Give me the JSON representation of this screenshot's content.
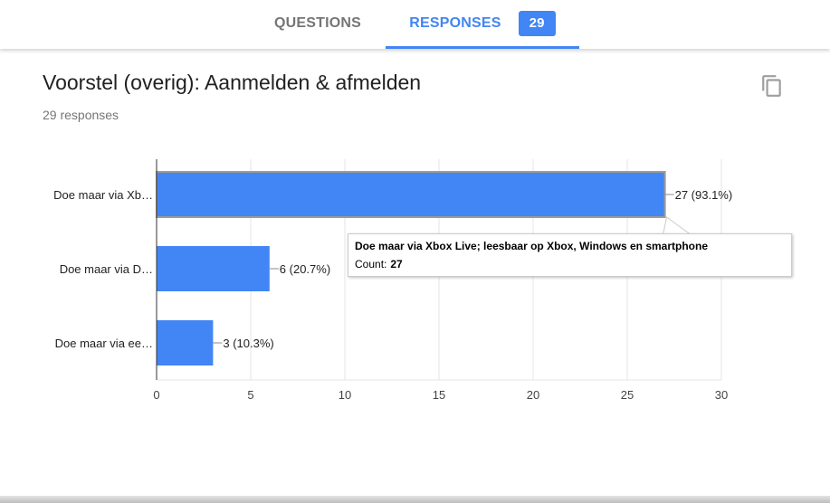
{
  "tabs": {
    "questions_label": "QUESTIONS",
    "responses_label": "RESPONSES",
    "responses_count": "29"
  },
  "card": {
    "title": "Voorstel (overig): Aanmelden & afmelden",
    "subtitle": "29 responses",
    "copy_icon": "copy-icon"
  },
  "tooltip": {
    "title": "Doe maar via Xbox Live; leesbaar op Xbox, Windows en smartphone",
    "count_label": "Count:",
    "count_value": "27"
  },
  "colors": {
    "accent": "#4285f4",
    "bar": "#4285f4"
  },
  "chart_data": {
    "type": "bar",
    "orientation": "horizontal",
    "categories": [
      "Doe maar via Xb…",
      "Doe maar via D…",
      "Doe maar via ee…"
    ],
    "values": [
      27,
      6,
      3
    ],
    "data_labels": [
      "27 (93.1%)",
      "6 (20.7%)",
      "3 (10.3%)"
    ],
    "xlim": [
      0,
      30
    ],
    "xticks": [
      0,
      5,
      10,
      15,
      20,
      25,
      30
    ],
    "grid": true,
    "highlighted_index": 0
  }
}
